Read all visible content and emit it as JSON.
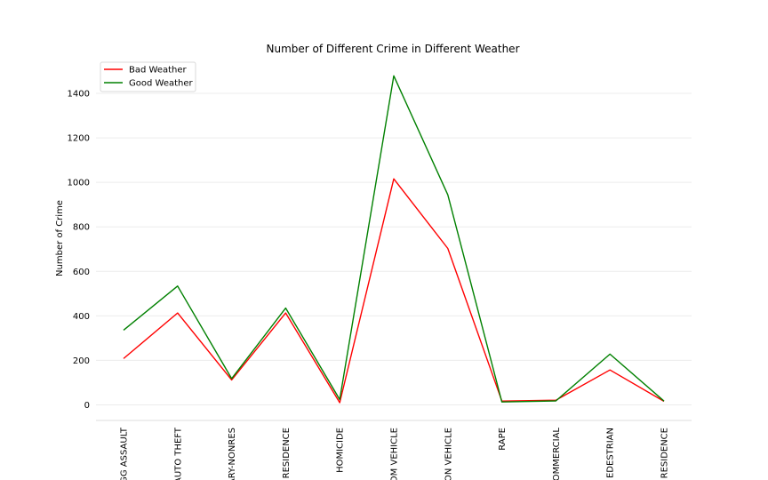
{
  "chart_data": {
    "type": "line",
    "title": "Number of Different Crime in Different Weather",
    "xlabel": "",
    "ylabel": "Number of Crime",
    "categories": [
      "AGG ASSAULT",
      "AUTO THEFT",
      "BURGLARY-NONRES",
      "BURGLARY-RESIDENCE",
      "HOMICIDE",
      "LARCENY-FROM VEHICLE",
      "LARCENY-NON VEHICLE",
      "RAPE",
      "ROBBERY-COMMERCIAL",
      "ROBBERY-PEDESTRIAN",
      "ROBBERY-RESIDENCE"
    ],
    "tick_labels_visible": [
      "AGG ASSAULT",
      "AUTO THEFT",
      "ARY-NONRES",
      "RESIDENCE",
      "HOMICIDE",
      "OM VEHICLE",
      "ON VEHICLE",
      "RAPE",
      "OMMERCIAL",
      "EDESTRIAN",
      "RESIDENCE"
    ],
    "ylim": [
      -70,
      1540
    ],
    "yticks": [
      0,
      200,
      400,
      600,
      800,
      1000,
      1200,
      1400
    ],
    "grid": "horizontal",
    "legend_position": "top-left",
    "series": [
      {
        "name": "Bad Weather",
        "color": "#ff0000",
        "values": [
          208,
          413,
          112,
          413,
          10,
          1016,
          703,
          17,
          21,
          157,
          16
        ]
      },
      {
        "name": "Good Weather",
        "color": "#008000",
        "values": [
          336,
          534,
          118,
          435,
          24,
          1479,
          944,
          13,
          18,
          228,
          17
        ]
      }
    ]
  }
}
